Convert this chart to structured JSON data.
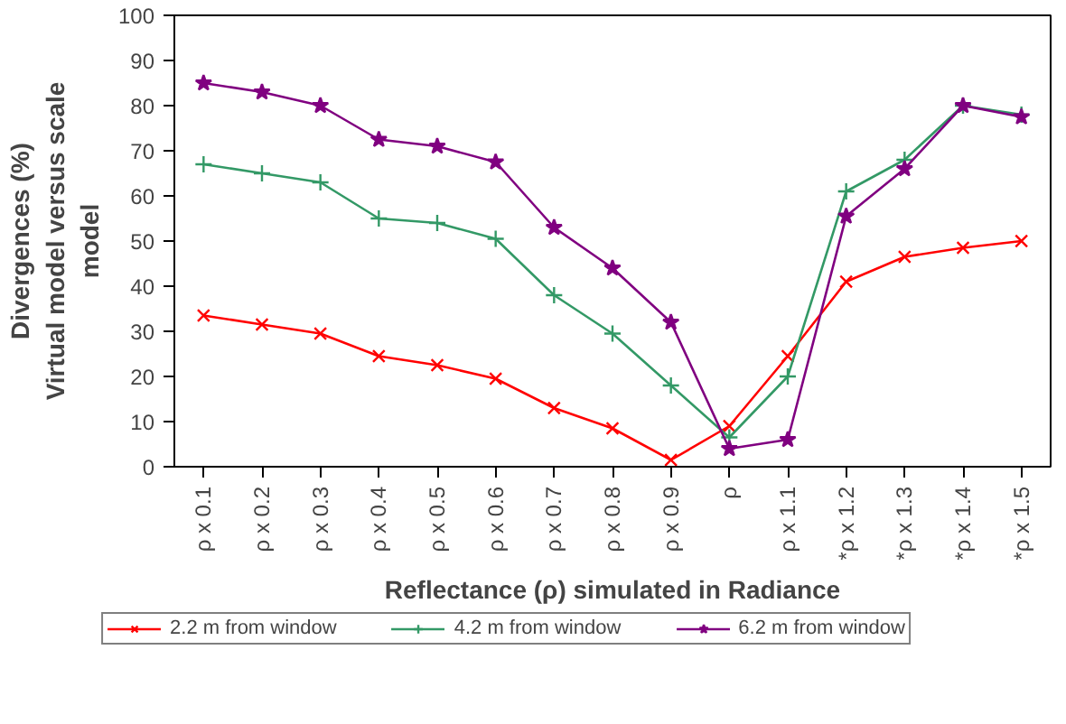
{
  "chart_data": {
    "type": "line",
    "xlabel": "Reflectance (ρ) simulated in Radiance",
    "ylabel": "Divergences (%)\nVirtual model versus scale\nmodel",
    "categories": [
      "ρ x 0.1",
      "ρ x 0.2",
      "ρ x 0.3",
      "ρ x 0.4",
      "ρ x 0.5",
      "ρ x 0.6",
      "ρ x 0.7",
      "ρ x 0.8",
      "ρ x 0.9",
      "ρ",
      "ρ x 1.1",
      "*ρ x 1.2",
      "*ρ x 1.3",
      "*ρ x 1.4",
      "*ρ x 1.5"
    ],
    "series": [
      {
        "name": "2.2 m from window",
        "color": "#ff0000",
        "marker": "x",
        "values": [
          33.5,
          31.5,
          29.5,
          24.5,
          22.5,
          19.5,
          13,
          8.5,
          1.5,
          9,
          24.5,
          41,
          46.5,
          48.5,
          50
        ]
      },
      {
        "name": "4.2 m from window",
        "color": "#339966",
        "marker": "cross",
        "values": [
          67,
          65,
          63,
          55,
          54,
          50.5,
          38,
          29.5,
          18,
          6.5,
          20,
          61,
          68,
          80,
          78
        ]
      },
      {
        "name": "6.2 m from window",
        "color": "#800080",
        "marker": "star",
        "values": [
          85,
          83,
          80,
          72.5,
          71,
          67.5,
          53,
          44,
          32,
          4,
          6,
          55.5,
          66,
          80,
          77.5
        ]
      }
    ],
    "ylim": [
      0,
      100
    ],
    "yticks": [
      0,
      10,
      20,
      30,
      40,
      50,
      60,
      70,
      80,
      90,
      100
    ],
    "grid": false,
    "legend": "bottom",
    "line_style": "solid"
  }
}
